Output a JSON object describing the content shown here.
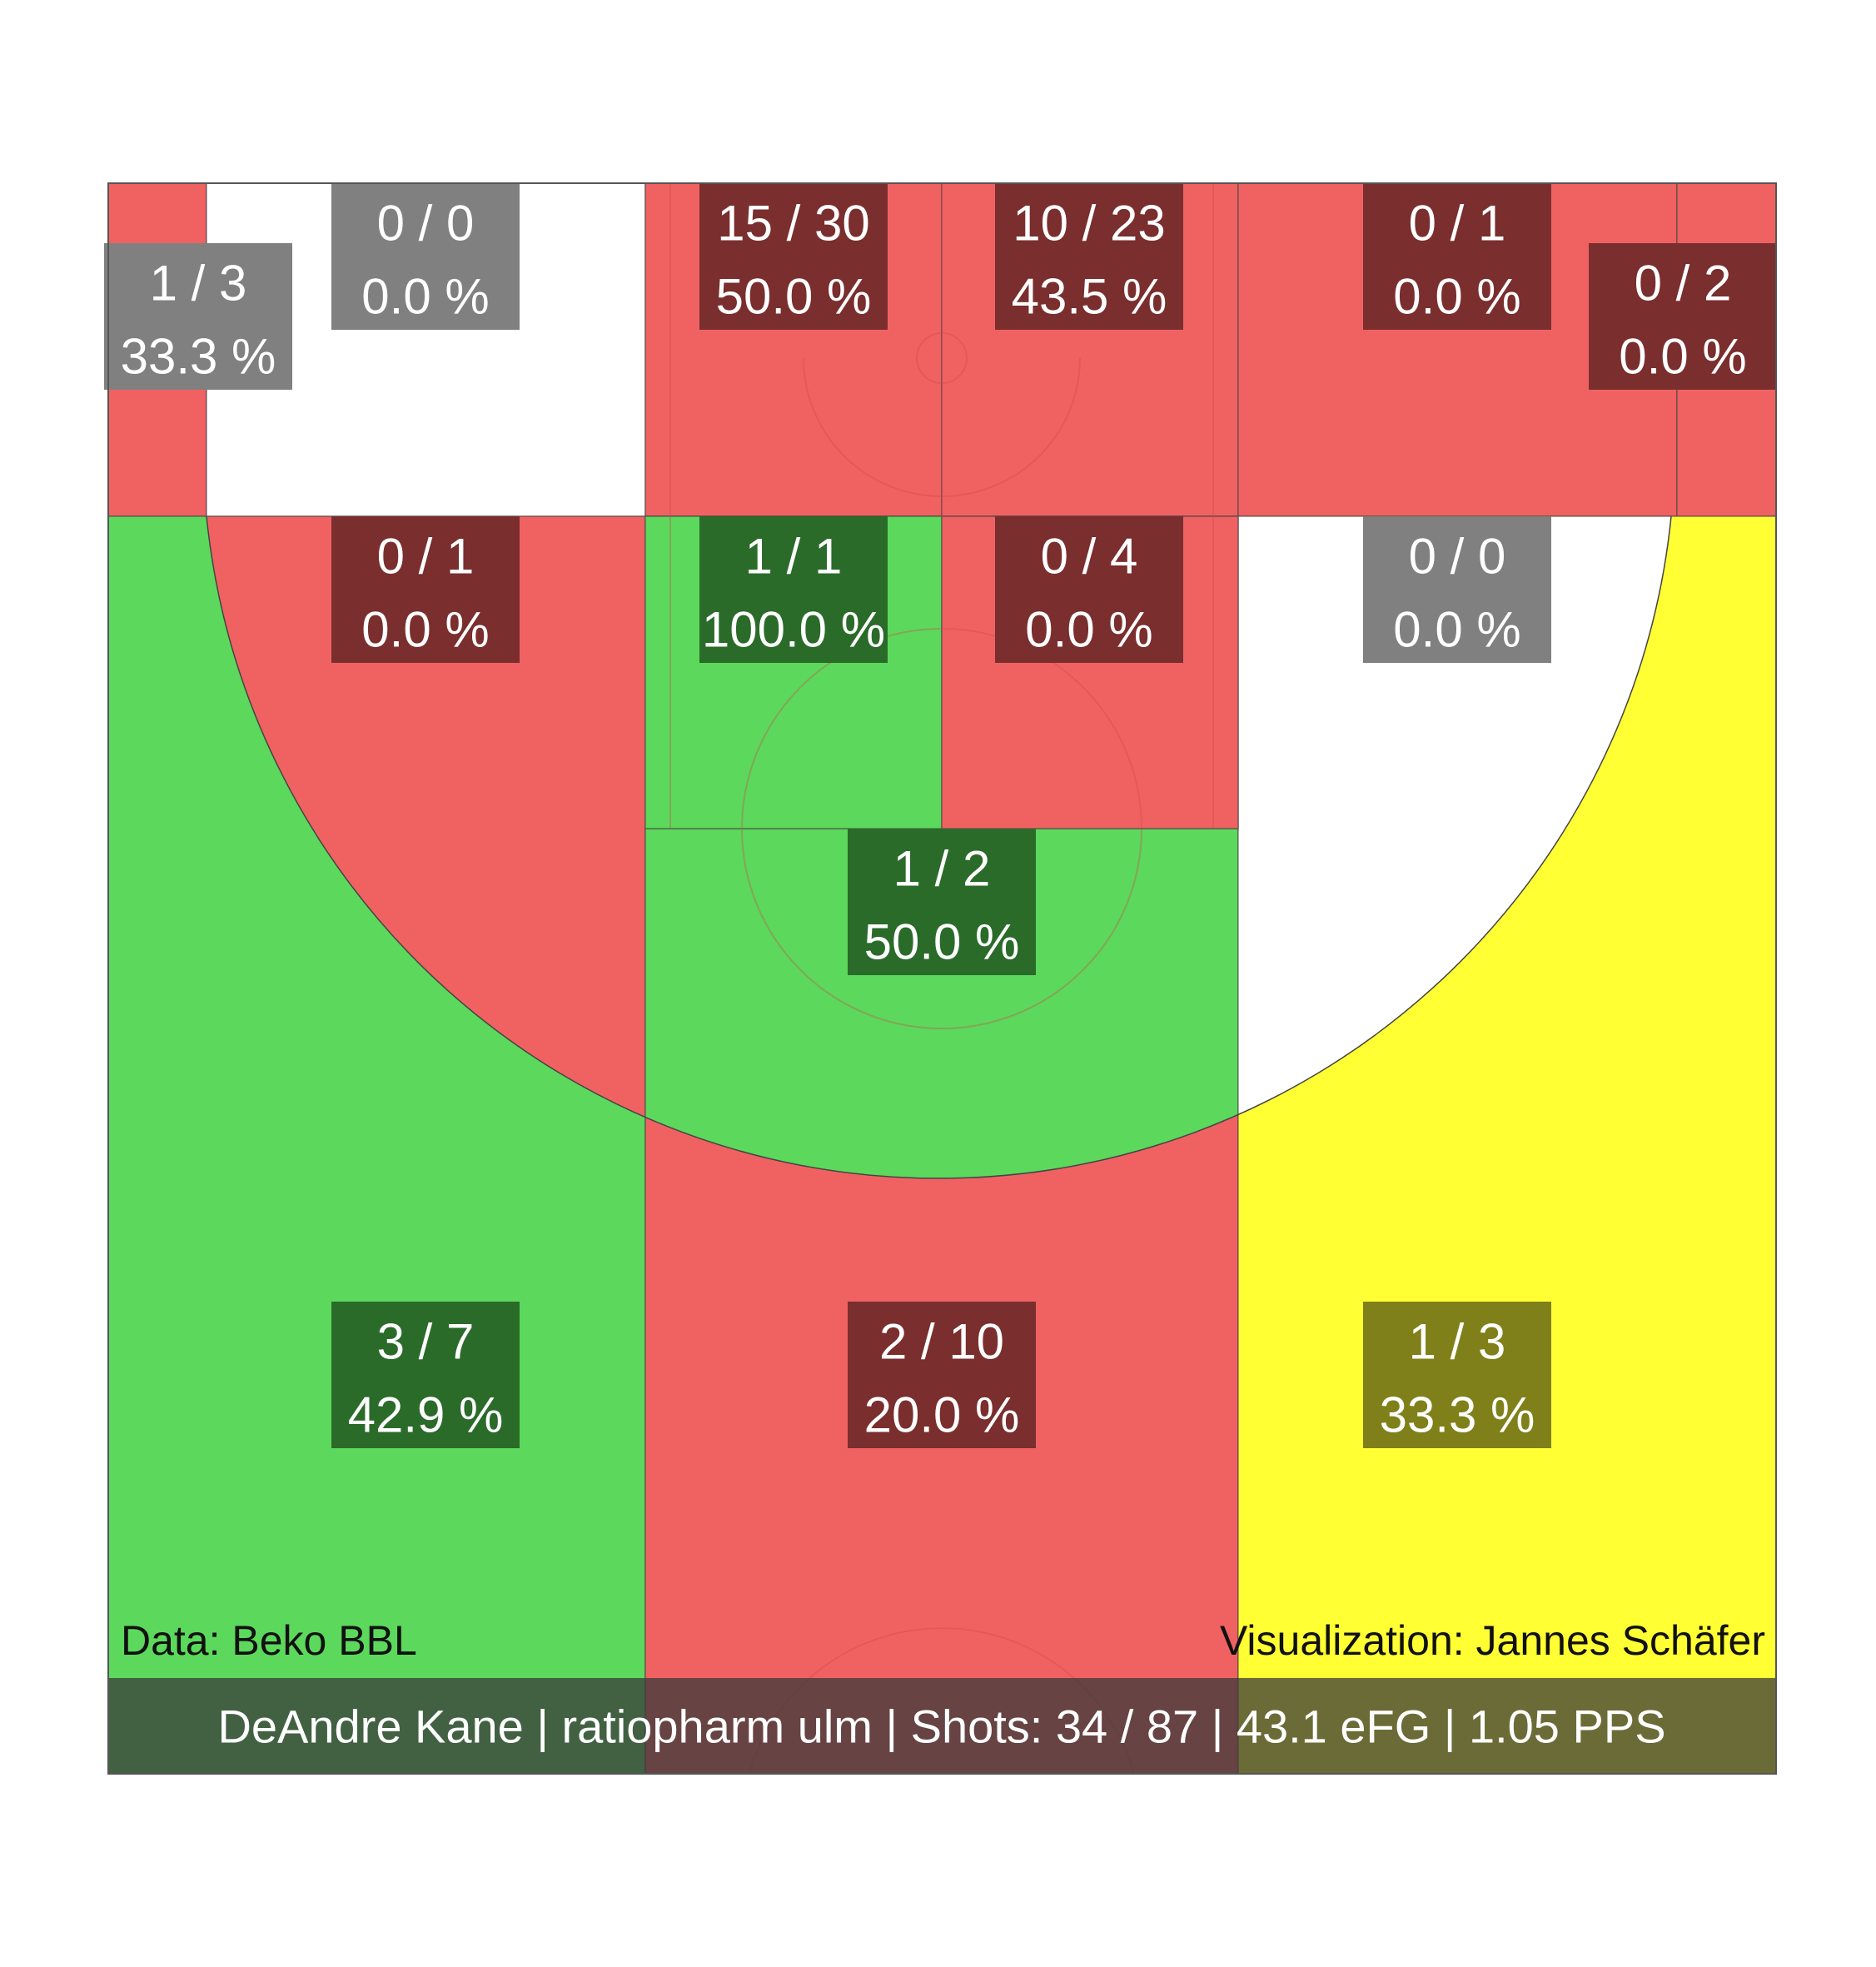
{
  "chart_data": {
    "type": "heatmap",
    "subtype": "basketball-shot-zones",
    "colors": {
      "red": "#f06262",
      "green": "#5cd85c",
      "yellow": "#ffff33",
      "white": "#ffffff",
      "label_red": "#7a2e2e",
      "label_green": "#2a6b2a",
      "label_yellow": "#80801a",
      "label_grey": "#808080"
    },
    "zones": [
      {
        "id": "corner-left",
        "makes_attempts": "1 / 3",
        "pct": "33.3 %",
        "made": 1,
        "attempts": 3,
        "color": "red",
        "label": "grey"
      },
      {
        "id": "baseline-left-mid",
        "makes_attempts": "0 / 0",
        "pct": "0.0 %",
        "made": 0,
        "attempts": 0,
        "color": "white",
        "label": "grey"
      },
      {
        "id": "restricted-left",
        "makes_attempts": "15 / 30",
        "pct": "50.0 %",
        "made": 15,
        "attempts": 30,
        "color": "red",
        "label": "red"
      },
      {
        "id": "restricted-right",
        "makes_attempts": "10 / 23",
        "pct": "43.5 %",
        "made": 10,
        "attempts": 23,
        "color": "red",
        "label": "red"
      },
      {
        "id": "baseline-right-mid",
        "makes_attempts": "0 / 1",
        "pct": "0.0 %",
        "made": 0,
        "attempts": 1,
        "color": "red",
        "label": "red"
      },
      {
        "id": "corner-right",
        "makes_attempts": "0 / 2",
        "pct": "0.0 %",
        "made": 0,
        "attempts": 2,
        "color": "red",
        "label": "red"
      },
      {
        "id": "wing-left-mid",
        "makes_attempts": "0 / 1",
        "pct": "0.0 %",
        "made": 0,
        "attempts": 1,
        "color": "red",
        "label": "red"
      },
      {
        "id": "paint-left",
        "makes_attempts": "1 / 1",
        "pct": "100.0 %",
        "made": 1,
        "attempts": 1,
        "color": "green",
        "label": "green"
      },
      {
        "id": "paint-right",
        "makes_attempts": "0 / 4",
        "pct": "0.0 %",
        "made": 0,
        "attempts": 4,
        "color": "red",
        "label": "red"
      },
      {
        "id": "wing-right-mid",
        "makes_attempts": "0 / 0",
        "pct": "0.0 %",
        "made": 0,
        "attempts": 0,
        "color": "white",
        "label": "grey"
      },
      {
        "id": "top-key",
        "makes_attempts": "1 / 2",
        "pct": "50.0 %",
        "made": 1,
        "attempts": 2,
        "color": "green",
        "label": "green"
      },
      {
        "id": "three-left",
        "makes_attempts": "3 / 7",
        "pct": "42.9 %",
        "made": 3,
        "attempts": 7,
        "color": "green",
        "label": "green"
      },
      {
        "id": "three-center",
        "makes_attempts": "2 / 10",
        "pct": "20.0 %",
        "made": 2,
        "attempts": 10,
        "color": "red",
        "label": "red"
      },
      {
        "id": "three-right",
        "makes_attempts": "1 / 3",
        "pct": "33.3 %",
        "made": 1,
        "attempts": 3,
        "color": "yellow",
        "label": "yellow"
      }
    ],
    "credits": {
      "data": "Data: Beko BBL",
      "visualization": "Visualization: Jannes Schäfer"
    },
    "summary": "DeAndre Kane | ratiopharm ulm | Shots: 34 / 87 | 43.1 eFG | 1.05 PPS"
  }
}
